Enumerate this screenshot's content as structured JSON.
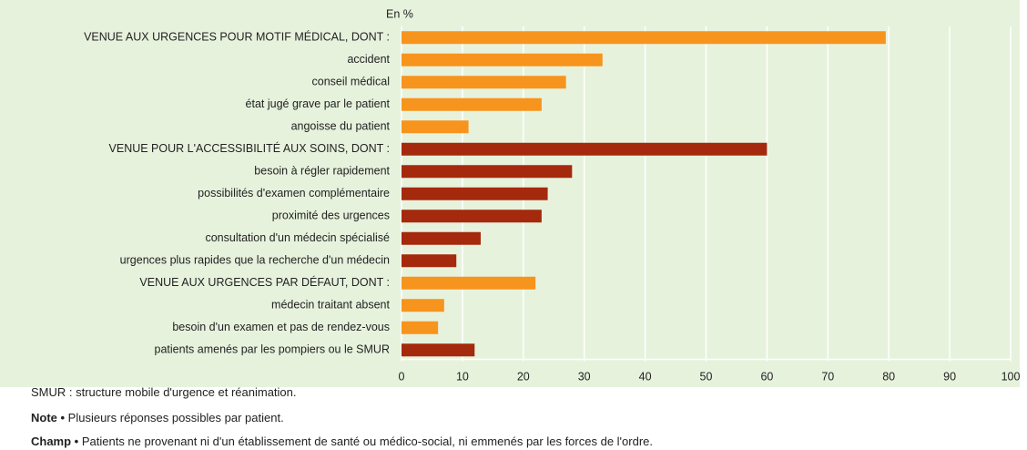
{
  "chart_data": {
    "type": "bar",
    "orientation": "horizontal",
    "unit_label": "En %",
    "categories": [
      "VENUE AUX URGENCES POUR MOTIF MÉDICAL, DONT :",
      "accident",
      "conseil médical",
      "état jugé grave par le patient",
      "angoisse du patient",
      "VENUE POUR L'ACCESSIBILITÉ AUX SOINS, DONT :",
      "besoin à régler rapidement",
      "possibilités d'examen complémentaire",
      "proximité des urgences",
      "consultation d'un médecin spécialisé",
      "urgences plus rapides que la recherche d'un médecin",
      "VENUE AUX URGENCES PAR DÉFAUT, DONT :",
      "médecin traitant absent",
      "besoin d'un examen et pas de rendez-vous",
      "patients amenés par les pompiers ou le SMUR"
    ],
    "values": [
      79.5,
      33,
      27,
      23,
      11,
      60,
      28,
      24,
      23,
      13,
      9,
      22,
      7,
      6,
      12
    ],
    "colors": [
      "#f7941d",
      "#f7941d",
      "#f7941d",
      "#f7941d",
      "#f7941d",
      "#a5290d",
      "#a5290d",
      "#a5290d",
      "#a5290d",
      "#a5290d",
      "#a5290d",
      "#f7941d",
      "#f7941d",
      "#f7941d",
      "#a5290d"
    ],
    "xlim": [
      0,
      100
    ],
    "xticks": [
      0,
      10,
      20,
      30,
      40,
      50,
      60,
      70,
      80,
      90,
      100
    ],
    "grid": true
  },
  "notes": [
    {
      "text": "SMUR : structure mobile d'urgence et réanimation."
    },
    {
      "label": "Note •",
      "text": " Plusieurs réponses possibles par patient."
    },
    {
      "label": "Champ •",
      "text": " Patients ne provenant ni d'un établissement de santé ou médico-social, ni emmenés par les forces de l'ordre."
    }
  ]
}
